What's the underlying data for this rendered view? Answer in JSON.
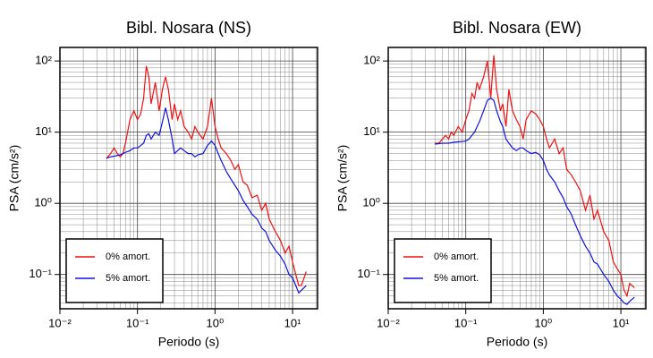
{
  "chart_data": [
    {
      "type": "line",
      "title": "Bibl. Nosara (NS)",
      "xlabel": "Periodo (s)",
      "ylabel": "PSA (cm/s²)",
      "xscale": "log",
      "yscale": "log",
      "grid": true,
      "minor_grid": true,
      "legend": "lower left",
      "xlim": [
        0.01,
        21
      ],
      "ylim": [
        0.033,
        155
      ],
      "xticks": [
        {
          "value": 0.01,
          "label": "10⁻²"
        },
        {
          "value": 0.1,
          "label": "10⁻¹"
        },
        {
          "value": 1,
          "label": "10⁰"
        },
        {
          "value": 10,
          "label": "10¹"
        }
      ],
      "yticks": [
        {
          "value": 0.1,
          "label": "10⁻¹"
        },
        {
          "value": 1,
          "label": "10⁰"
        },
        {
          "value": 10,
          "label": "10¹"
        },
        {
          "value": 100,
          "label": "10²"
        }
      ],
      "x": [
        0.04,
        0.045,
        0.05,
        0.055,
        0.06,
        0.065,
        0.07,
        0.08,
        0.09,
        0.1,
        0.11,
        0.12,
        0.13,
        0.14,
        0.15,
        0.17,
        0.19,
        0.21,
        0.23,
        0.25,
        0.28,
        0.3,
        0.33,
        0.36,
        0.4,
        0.45,
        0.5,
        0.55,
        0.6,
        0.7,
        0.8,
        0.9,
        1.0,
        1.1,
        1.2,
        1.4,
        1.6,
        1.8,
        2.0,
        2.3,
        2.6,
        3.0,
        3.5,
        4,
        4.5,
        5,
        6,
        7,
        8,
        9,
        10,
        11,
        12,
        13,
        15
      ],
      "series": [
        {
          "name": "0% amort.",
          "color": "#ee1111",
          "values": [
            4.3,
            5,
            6,
            5,
            4.5,
            5,
            7,
            15,
            20,
            15,
            18,
            30,
            85,
            60,
            25,
            50,
            20,
            40,
            60,
            40,
            15,
            25,
            15,
            20,
            12,
            10,
            8,
            12,
            10,
            8,
            12,
            30,
            12,
            8,
            6,
            5,
            4,
            3,
            3.5,
            2,
            1.8,
            1.2,
            1.3,
            0.8,
            1.0,
            0.6,
            0.4,
            0.3,
            0.2,
            0.25,
            0.15,
            0.1,
            0.07,
            0.07,
            0.11
          ]
        },
        {
          "name": "5% amort.",
          "color": "#1111dd",
          "values": [
            4.3,
            4.5,
            4.6,
            4.7,
            4.8,
            5,
            5.2,
            5.5,
            6,
            6,
            6.5,
            7,
            9,
            9.5,
            8,
            10,
            9,
            14,
            22,
            15,
            8,
            5,
            5.5,
            6,
            5.5,
            5,
            5,
            4.5,
            4.8,
            5,
            6.5,
            7.5,
            6.5,
            5,
            4,
            2.8,
            2.2,
            1.8,
            1.5,
            1.1,
            0.9,
            0.7,
            0.6,
            0.45,
            0.4,
            0.3,
            0.22,
            0.18,
            0.14,
            0.1,
            0.09,
            0.07,
            0.055,
            0.06,
            0.07
          ]
        }
      ]
    },
    {
      "type": "line",
      "title": "Bibl. Nosara (EW)",
      "xlabel": "Periodo (s)",
      "ylabel": "PSA (cm/s²)",
      "xscale": "log",
      "yscale": "log",
      "grid": true,
      "minor_grid": true,
      "legend": "lower left",
      "xlim": [
        0.01,
        21
      ],
      "ylim": [
        0.033,
        155
      ],
      "xticks": [
        {
          "value": 0.01,
          "label": "10⁻²"
        },
        {
          "value": 0.1,
          "label": "10⁻¹"
        },
        {
          "value": 1,
          "label": "10⁰"
        },
        {
          "value": 10,
          "label": "10¹"
        }
      ],
      "yticks": [
        {
          "value": 0.1,
          "label": "10⁻¹"
        },
        {
          "value": 1,
          "label": "10⁰"
        },
        {
          "value": 10,
          "label": "10¹"
        },
        {
          "value": 100,
          "label": "10²"
        }
      ],
      "x": [
        0.04,
        0.045,
        0.05,
        0.055,
        0.06,
        0.065,
        0.07,
        0.08,
        0.09,
        0.1,
        0.11,
        0.12,
        0.13,
        0.14,
        0.15,
        0.17,
        0.19,
        0.21,
        0.23,
        0.25,
        0.28,
        0.3,
        0.33,
        0.36,
        0.4,
        0.45,
        0.5,
        0.55,
        0.6,
        0.7,
        0.8,
        0.9,
        1.0,
        1.1,
        1.2,
        1.4,
        1.6,
        1.8,
        2.0,
        2.3,
        2.6,
        3.0,
        3.5,
        4,
        4.5,
        5,
        6,
        7,
        8,
        9,
        10,
        11,
        12,
        13,
        15
      ],
      "series": [
        {
          "name": "0% amort.",
          "color": "#ee1111",
          "values": [
            7,
            7,
            8,
            9,
            8,
            10,
            9,
            12,
            10,
            15,
            20,
            35,
            30,
            50,
            40,
            60,
            100,
            30,
            120,
            40,
            20,
            25,
            12,
            40,
            20,
            15,
            12,
            8,
            15,
            20,
            18,
            15,
            12,
            8,
            6,
            8,
            5,
            6,
            3,
            2.5,
            2,
            1.5,
            0.8,
            1.3,
            0.6,
            0.8,
            0.4,
            0.3,
            0.15,
            0.12,
            0.1,
            0.06,
            0.05,
            0.075,
            0.065
          ]
        },
        {
          "name": "5% amort.",
          "color": "#1111dd",
          "values": [
            6.8,
            6.9,
            7,
            7,
            7,
            7.1,
            7.2,
            7.3,
            7.4,
            7.5,
            8,
            9,
            10,
            12,
            14,
            20,
            28,
            30,
            28,
            20,
            14,
            12,
            8,
            7,
            6,
            5.5,
            6,
            6,
            5.5,
            5,
            5.2,
            4.8,
            4,
            3,
            2.5,
            2,
            1.5,
            1.2,
            0.9,
            0.7,
            0.5,
            0.35,
            0.25,
            0.2,
            0.15,
            0.14,
            0.1,
            0.08,
            0.06,
            0.05,
            0.045,
            0.04,
            0.038,
            0.042,
            0.048
          ]
        }
      ]
    }
  ]
}
